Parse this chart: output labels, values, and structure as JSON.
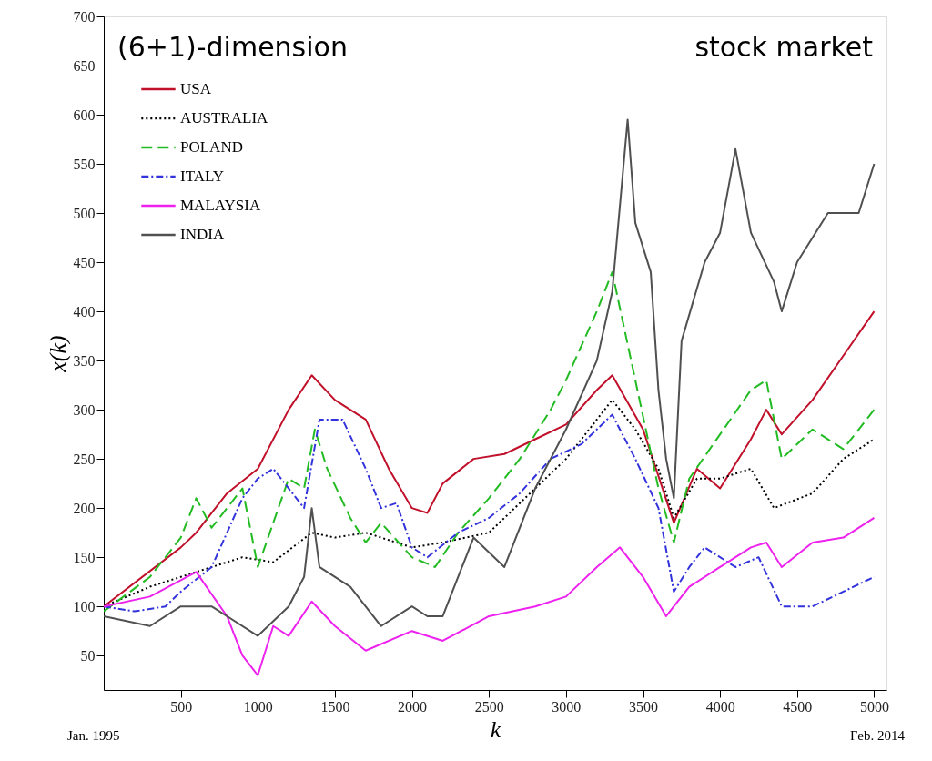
{
  "chart_data": {
    "type": "line",
    "xlabel": "k",
    "ylabel": "x(k)",
    "annotations": [
      "(6+1)-dimension",
      "stock market",
      "Jan. 1995",
      "Feb. 2014"
    ],
    "xlim": [
      0,
      5080
    ],
    "xticks": [
      500,
      1000,
      1500,
      2000,
      2500,
      3000,
      3500,
      4000,
      4500,
      5000
    ],
    "ylim": [
      15,
      700
    ],
    "yticks": [
      50,
      100,
      150,
      200,
      250,
      300,
      350,
      400,
      450,
      500,
      550,
      600,
      650,
      700
    ],
    "grid": false,
    "legend": "top left",
    "marker": "none",
    "series": [
      {
        "name": "USA",
        "color": "#c0102a",
        "line_style": "solid",
        "x": [
          0,
          500,
          600,
          800,
          1000,
          1200,
          1350,
          1500,
          1700,
          1850,
          2000,
          2100,
          2200,
          2400,
          2600,
          2800,
          3000,
          3200,
          3300,
          3500,
          3700,
          3850,
          4000,
          4200,
          4300,
          4400,
          4600,
          4800,
          5000
        ],
        "values": [
          100,
          160,
          175,
          215,
          240,
          300,
          335,
          310,
          290,
          240,
          200,
          195,
          225,
          250,
          255,
          270,
          285,
          320,
          335,
          280,
          185,
          240,
          220,
          270,
          300,
          275,
          310,
          355,
          400
        ]
      },
      {
        "name": "AUSTRALIA",
        "color": "#000000",
        "line_style": "dotted",
        "x": [
          0,
          300,
          600,
          900,
          1100,
          1350,
          1500,
          1700,
          2000,
          2200,
          2500,
          2800,
          3000,
          3200,
          3300,
          3450,
          3600,
          3700,
          3850,
          4000,
          4200,
          4350,
          4600,
          4800,
          5000
        ],
        "values": [
          100,
          120,
          135,
          150,
          145,
          175,
          170,
          175,
          160,
          165,
          175,
          220,
          250,
          290,
          310,
          280,
          240,
          190,
          230,
          230,
          240,
          200,
          215,
          250,
          270
        ]
      },
      {
        "name": "POLAND",
        "color": "#22bb22",
        "line_style": "dashed",
        "x": [
          0,
          300,
          500,
          600,
          700,
          900,
          1000,
          1200,
          1300,
          1370,
          1450,
          1600,
          1700,
          1800,
          2000,
          2150,
          2300,
          2500,
          2700,
          2900,
          3000,
          3200,
          3300,
          3450,
          3600,
          3700,
          3800,
          4000,
          4200,
          4300,
          4400,
          4600,
          4800,
          5000
        ],
        "values": [
          95,
          130,
          170,
          210,
          180,
          220,
          140,
          230,
          220,
          280,
          240,
          190,
          165,
          185,
          150,
          140,
          175,
          210,
          250,
          300,
          330,
          400,
          440,
          330,
          220,
          165,
          230,
          275,
          320,
          330,
          250,
          280,
          260,
          300
        ]
      },
      {
        "name": "ITALY",
        "color": "#3333dd",
        "line_style": "dashdot",
        "x": [
          0,
          200,
          400,
          500,
          700,
          900,
          1000,
          1100,
          1300,
          1400,
          1550,
          1700,
          1800,
          1900,
          2000,
          2100,
          2300,
          2500,
          2700,
          2900,
          3100,
          3300,
          3450,
          3600,
          3700,
          3800,
          3900,
          4100,
          4250,
          4400,
          4600,
          4800,
          5000
        ],
        "values": [
          100,
          95,
          100,
          115,
          140,
          210,
          230,
          240,
          200,
          290,
          290,
          240,
          200,
          205,
          160,
          150,
          175,
          190,
          215,
          250,
          265,
          295,
          250,
          200,
          115,
          140,
          160,
          140,
          150,
          100,
          100,
          115,
          130
        ]
      },
      {
        "name": "MALAYSIA",
        "color": "#ee22ee",
        "line_style": "solid",
        "x": [
          0,
          300,
          600,
          800,
          900,
          1000,
          1100,
          1200,
          1350,
          1500,
          1700,
          2000,
          2200,
          2500,
          2800,
          3000,
          3200,
          3350,
          3500,
          3650,
          3800,
          4000,
          4200,
          4300,
          4400,
          4600,
          4800,
          5000
        ],
        "values": [
          100,
          110,
          135,
          90,
          50,
          30,
          80,
          70,
          105,
          80,
          55,
          75,
          65,
          90,
          100,
          110,
          140,
          160,
          130,
          90,
          120,
          140,
          160,
          165,
          140,
          165,
          170,
          190
        ]
      },
      {
        "name": "INDIA",
        "color": "#505050",
        "line_style": "solid",
        "x": [
          0,
          300,
          500,
          700,
          1000,
          1200,
          1300,
          1350,
          1400,
          1600,
          1800,
          2000,
          2100,
          2200,
          2400,
          2600,
          2800,
          3000,
          3200,
          3300,
          3400,
          3450,
          3550,
          3600,
          3650,
          3700,
          3750,
          3900,
          4000,
          4100,
          4200,
          4350,
          4400,
          4500,
          4700,
          4900,
          5000
        ],
        "values": [
          90,
          80,
          100,
          100,
          70,
          100,
          130,
          200,
          140,
          120,
          80,
          100,
          90,
          90,
          170,
          140,
          220,
          280,
          350,
          420,
          595,
          490,
          440,
          320,
          250,
          210,
          370,
          450,
          480,
          565,
          480,
          430,
          400,
          450,
          500,
          500,
          550
        ]
      }
    ]
  }
}
